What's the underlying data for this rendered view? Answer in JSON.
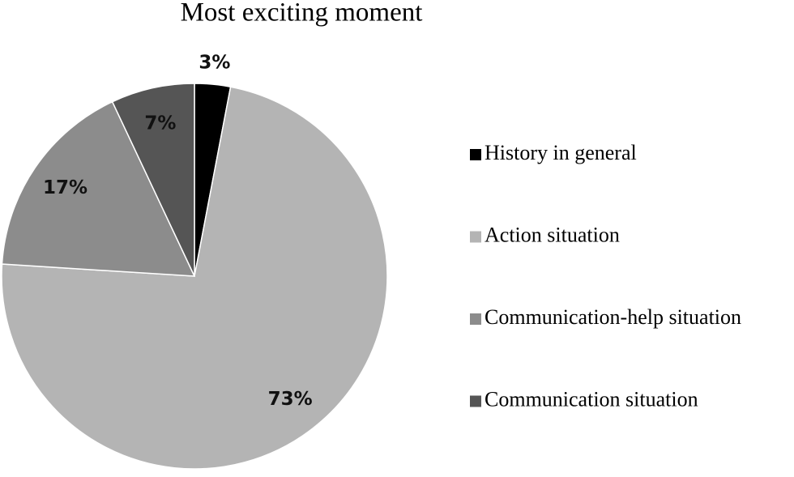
{
  "chart_data": {
    "type": "pie",
    "title": "Most exciting moment",
    "categories": [
      "History in general",
      "Action situation",
      "Communication-help situation",
      "Communication situation"
    ],
    "values": [
      3,
      73,
      17,
      7
    ],
    "value_labels": [
      "3%",
      "73%",
      "17%",
      "7%"
    ],
    "colors": [
      "#000000",
      "#b4b4b4",
      "#8c8c8c",
      "#555555"
    ],
    "legend": "right"
  }
}
